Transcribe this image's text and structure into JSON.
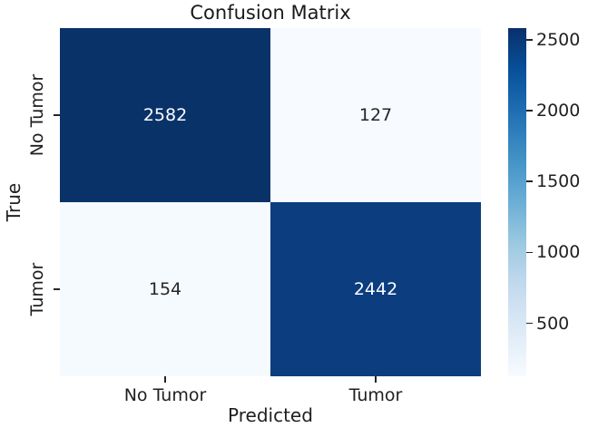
{
  "chart_data": {
    "type": "heatmap",
    "title": "Confusion Matrix",
    "xlabel": "Predicted",
    "ylabel": "True",
    "x_categories": [
      "No Tumor",
      "Tumor"
    ],
    "y_categories": [
      "No Tumor",
      "Tumor"
    ],
    "matrix": [
      [
        2582,
        127
      ],
      [
        154,
        2442
      ]
    ],
    "vmin": 127,
    "vmax": 2582,
    "colormap": "Blues",
    "colormap_stops": [
      "#f7fbff",
      "#deebf7",
      "#c6dbef",
      "#9ecae1",
      "#6baed6",
      "#4292c6",
      "#2171b5",
      "#08519c",
      "#08306b"
    ],
    "cell_colors": [
      [
        "#093269",
        "#f7fbff"
      ],
      [
        "#f5fafe",
        "#0b3d7f"
      ]
    ],
    "cell_text_colors": [
      [
        "#fbfdff",
        "#262626"
      ],
      [
        "#262626",
        "#fbfdff"
      ]
    ],
    "colorbar": {
      "ticks": [
        500,
        1000,
        1500,
        2000,
        2500
      ]
    },
    "grid": false,
    "legend": "none",
    "background_color": "#ffffff",
    "text_color": "#262626"
  }
}
